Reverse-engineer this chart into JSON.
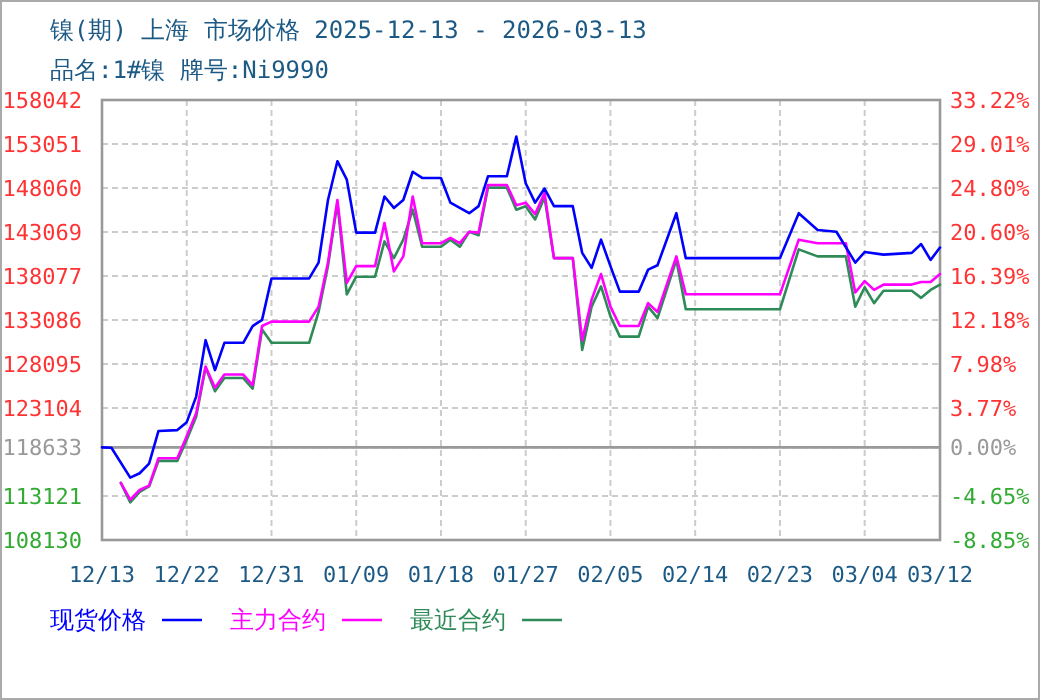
{
  "chart_data": {
    "type": "line",
    "title": "镍(期) 上海 市场价格 2025-12-13 - 2026-03-13",
    "subtitle": "品名:1#镍 牌号:Ni9990",
    "xlim": [
      "2025-12-13",
      "2026-03-12"
    ],
    "xticks": [
      {
        "value": "2025-12-13",
        "label": "12/13"
      },
      {
        "value": "2025-12-22",
        "label": "12/22"
      },
      {
        "value": "2025-12-31",
        "label": "12/31"
      },
      {
        "value": "2026-01-09",
        "label": "01/09"
      },
      {
        "value": "2026-01-18",
        "label": "01/18"
      },
      {
        "value": "2026-01-27",
        "label": "01/27"
      },
      {
        "value": "2026-02-05",
        "label": "02/05"
      },
      {
        "value": "2026-02-14",
        "label": "02/14"
      },
      {
        "value": "2026-02-23",
        "label": "02/23"
      },
      {
        "value": "2026-03-04",
        "label": "03/04"
      },
      {
        "value": "2026-03-12",
        "label": "03/12"
      }
    ],
    "ylim": [
      108130,
      158042
    ],
    "yticks": [
      108130,
      113121,
      118633,
      123104,
      128095,
      133086,
      138077,
      143069,
      148060,
      153051,
      158042
    ],
    "y2lim": [
      -8.85,
      33.22
    ],
    "y2ticks": [
      {
        "value": -8.85,
        "label": "-8.85%"
      },
      {
        "value": -4.65,
        "label": "-4.65%"
      },
      {
        "value": 0,
        "label": "0.00%"
      },
      {
        "value": 3.77,
        "label": "3.77%"
      },
      {
        "value": 7.98,
        "label": "7.98%"
      },
      {
        "value": 12.18,
        "label": "12.18%"
      },
      {
        "value": 16.39,
        "label": "16.39%"
      },
      {
        "value": 20.6,
        "label": "20.60%"
      },
      {
        "value": 24.8,
        "label": "24.80%"
      },
      {
        "value": 29.01,
        "label": "29.01%"
      },
      {
        "value": 33.22,
        "label": "33.22%"
      }
    ],
    "grid": true,
    "legend": "bottom",
    "ref_lines": [
      {
        "axis": "y",
        "value": 118633,
        "color": "#999999"
      }
    ],
    "series": [
      {
        "name": "现货价格",
        "color": "#0000ff",
        "x": [
          "2025-12-13",
          "2025-12-14",
          "2025-12-16",
          "2025-12-17",
          "2025-12-18",
          "2025-12-19",
          "2025-12-21",
          "2025-12-22",
          "2025-12-23",
          "2025-12-24",
          "2025-12-25",
          "2025-12-26",
          "2025-12-28",
          "2025-12-29",
          "2025-12-30",
          "2025-12-31",
          "2026-01-04",
          "2026-01-05",
          "2026-01-06",
          "2026-01-07",
          "2026-01-08",
          "2026-01-09",
          "2026-01-11",
          "2026-01-12",
          "2026-01-13",
          "2026-01-14",
          "2026-01-15",
          "2026-01-16",
          "2026-01-18",
          "2026-01-19",
          "2026-01-21",
          "2026-01-22",
          "2026-01-23",
          "2026-01-25",
          "2026-01-26",
          "2026-01-27",
          "2026-01-28",
          "2026-01-29",
          "2026-01-30",
          "2026-02-01",
          "2026-02-02",
          "2026-02-03",
          "2026-02-04",
          "2026-02-05",
          "2026-02-06",
          "2026-02-08",
          "2026-02-09",
          "2026-02-10",
          "2026-02-12",
          "2026-02-13",
          "2026-02-23",
          "2026-02-25",
          "2026-02-27",
          "2026-03-01",
          "2026-03-03",
          "2026-03-04",
          "2026-03-06",
          "2026-03-09",
          "2026-03-10",
          "2026-03-11",
          "2026-03-12"
        ],
        "values": [
          118633,
          118600,
          115200,
          115700,
          116800,
          120500,
          120600,
          121500,
          124400,
          130800,
          127400,
          130500,
          130500,
          132400,
          133100,
          137800,
          137800,
          139600,
          146700,
          151100,
          149000,
          143000,
          143000,
          147100,
          145800,
          146700,
          149900,
          149200,
          149200,
          146400,
          145200,
          146000,
          149400,
          149400,
          153900,
          148600,
          146400,
          148000,
          146000,
          146000,
          140700,
          139000,
          142200,
          139200,
          136300,
          136300,
          138800,
          139300,
          145200,
          140100,
          140100,
          145200,
          143300,
          143100,
          139600,
          140800,
          140500,
          140700,
          141700,
          139900,
          141300
        ]
      },
      {
        "name": "主力合约",
        "color": "#ff00ff",
        "x": [
          "2025-12-15",
          "2025-12-16",
          "2025-12-17",
          "2025-12-18",
          "2025-12-19",
          "2025-12-21",
          "2025-12-22",
          "2025-12-23",
          "2025-12-24",
          "2025-12-25",
          "2025-12-26",
          "2025-12-28",
          "2025-12-29",
          "2025-12-30",
          "2025-12-31",
          "2026-01-04",
          "2026-01-05",
          "2026-01-06",
          "2026-01-07",
          "2026-01-08",
          "2026-01-09",
          "2026-01-11",
          "2026-01-12",
          "2026-01-13",
          "2026-01-14",
          "2026-01-15",
          "2026-01-16",
          "2026-01-18",
          "2026-01-19",
          "2026-01-20",
          "2026-01-21",
          "2026-01-22",
          "2026-01-23",
          "2026-01-25",
          "2026-01-26",
          "2026-01-27",
          "2026-01-28",
          "2026-01-29",
          "2026-01-30",
          "2026-02-01",
          "2026-02-02",
          "2026-02-03",
          "2026-02-04",
          "2026-02-05",
          "2026-02-06",
          "2026-02-08",
          "2026-02-09",
          "2026-02-10",
          "2026-02-12",
          "2026-02-13",
          "2026-02-23",
          "2026-02-25",
          "2026-02-27",
          "2026-03-02",
          "2026-03-03",
          "2026-03-04",
          "2026-03-05",
          "2026-03-06",
          "2026-03-09",
          "2026-03-10",
          "2026-03-11",
          "2026-03-12"
        ],
        "values": [
          114600,
          112700,
          113800,
          114300,
          117400,
          117400,
          119900,
          122500,
          127800,
          125400,
          126900,
          126900,
          125700,
          132400,
          132900,
          132900,
          134600,
          139600,
          146700,
          137300,
          139200,
          139200,
          144100,
          138600,
          140300,
          147100,
          141800,
          141800,
          142400,
          141800,
          143100,
          143000,
          148400,
          148400,
          146100,
          146400,
          145100,
          147500,
          140100,
          140100,
          130800,
          135400,
          138300,
          134600,
          132400,
          132400,
          135000,
          134000,
          140300,
          136000,
          136000,
          142200,
          141800,
          141800,
          136200,
          137500,
          136500,
          137100,
          137100,
          137400,
          137400,
          138300
        ]
      },
      {
        "name": "最近合约",
        "color": "#2e8b57",
        "x": [
          "2025-12-15",
          "2025-12-16",
          "2025-12-17",
          "2025-12-18",
          "2025-12-19",
          "2025-12-21",
          "2025-12-22",
          "2025-12-23",
          "2025-12-24",
          "2025-12-25",
          "2025-12-26",
          "2025-12-28",
          "2025-12-29",
          "2025-12-30",
          "2025-12-31",
          "2026-01-04",
          "2026-01-05",
          "2026-01-06",
          "2026-01-07",
          "2026-01-08",
          "2026-01-09",
          "2026-01-11",
          "2026-01-12",
          "2026-01-13",
          "2026-01-14",
          "2026-01-15",
          "2026-01-16",
          "2026-01-18",
          "2026-01-19",
          "2026-01-20",
          "2026-01-21",
          "2026-01-22",
          "2026-01-23",
          "2026-01-25",
          "2026-01-26",
          "2026-01-27",
          "2026-01-28",
          "2026-01-29",
          "2026-01-30",
          "2026-02-01",
          "2026-02-02",
          "2026-02-03",
          "2026-02-04",
          "2026-02-05",
          "2026-02-06",
          "2026-02-08",
          "2026-02-09",
          "2026-02-10",
          "2026-02-12",
          "2026-02-13",
          "2026-02-23",
          "2026-02-25",
          "2026-02-27",
          "2026-03-02",
          "2026-03-03",
          "2026-03-04",
          "2026-03-05",
          "2026-03-06",
          "2026-03-09",
          "2026-03-10",
          "2026-03-11",
          "2026-03-12"
        ],
        "values": [
          114600,
          112400,
          113600,
          114200,
          117100,
          117100,
          119500,
          122100,
          127700,
          125000,
          126500,
          126500,
          125300,
          132000,
          130500,
          130500,
          134000,
          139200,
          146400,
          136000,
          138000,
          138000,
          142000,
          140100,
          142200,
          145600,
          141400,
          141400,
          142200,
          141400,
          143100,
          142700,
          148100,
          148100,
          145600,
          146000,
          144500,
          147000,
          140100,
          140100,
          129700,
          134600,
          136900,
          133500,
          131200,
          131200,
          134600,
          133300,
          139900,
          134300,
          134300,
          141100,
          140300,
          140300,
          134600,
          136800,
          135000,
          136400,
          136400,
          135600,
          136500,
          137100
        ]
      }
    ]
  }
}
